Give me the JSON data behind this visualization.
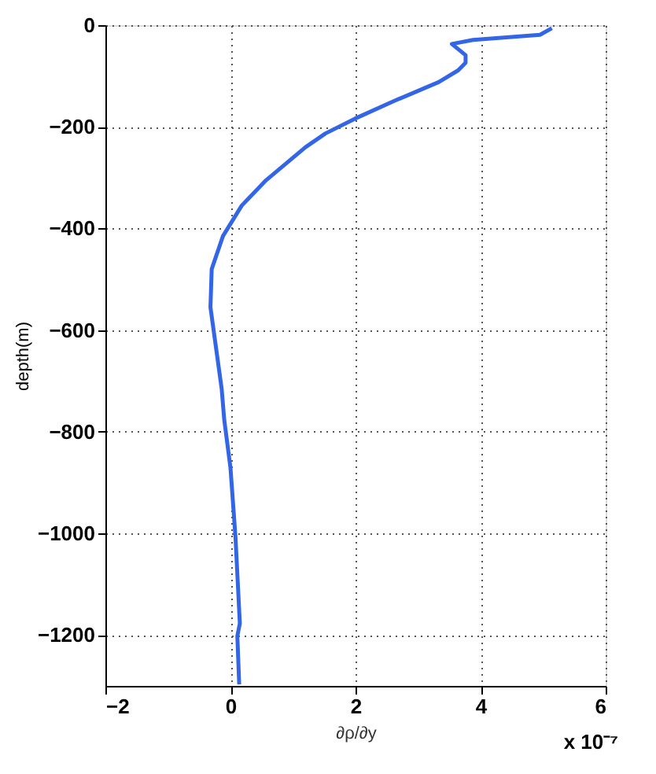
{
  "chart_data": {
    "type": "line",
    "xlabel": "∂ρ/∂y",
    "ylabel": "depth(m)",
    "annotations": [
      "x 10⁻⁷"
    ],
    "x": [
      5.14,
      4.95,
      3.88,
      3.54,
      3.76,
      3.76,
      3.64,
      3.33,
      2.62,
      1.99,
      1.52,
      1.2,
      0.57,
      0.18,
      -0.12,
      -0.3,
      -0.32,
      -0.14,
      -0.1,
      0.0,
      0.08,
      0.15,
      0.11,
      0.14
    ],
    "series": [
      {
        "color": "#3366e6",
        "values": [
          -6,
          -19,
          -29,
          -37,
          -59,
          -74,
          -89,
          -112,
          -149,
          -184,
          -213,
          -240,
          -305,
          -355,
          -415,
          -480,
          -555,
          -716,
          -776,
          -871,
          -1007,
          -1177,
          -1202,
          -1297
        ]
      }
    ],
    "xlim": [
      -2,
      6
    ],
    "xticks": [
      -2,
      0,
      2,
      4,
      6
    ],
    "ylim": [
      -1300,
      0
    ],
    "yticks": [
      0,
      -200,
      -400,
      -600,
      -800,
      -1000,
      -1200
    ],
    "grid": true,
    "line_style": "solid",
    "marker": "none"
  }
}
